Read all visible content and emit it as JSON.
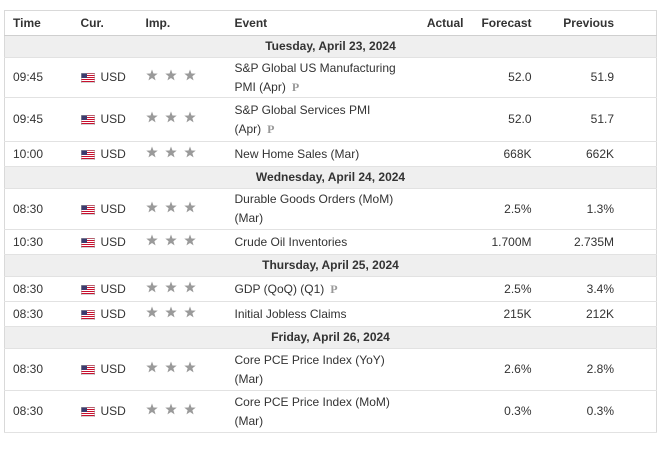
{
  "header": {
    "columns": [
      "Time",
      "Cur.",
      "Imp.",
      "Event",
      "Actual",
      "Forecast",
      "Previous"
    ]
  },
  "days": [
    {
      "date": "Tuesday, April 23, 2024",
      "events": [
        {
          "time": "09:45",
          "currency": "USD",
          "event": "S&P Global US Manufacturing PMI (Apr)",
          "mark": "P",
          "forecast": "52.0",
          "previous": "51.9"
        },
        {
          "time": "09:45",
          "currency": "USD",
          "event": "S&P Global Services PMI (Apr)",
          "mark": "P",
          "forecast": "52.0",
          "previous": "51.7"
        },
        {
          "time": "10:00",
          "currency": "USD",
          "event": "New Home Sales (Mar)",
          "forecast": "668K",
          "previous": "662K"
        }
      ]
    },
    {
      "date": "Wednesday, April 24, 2024",
      "events": [
        {
          "time": "08:30",
          "currency": "USD",
          "event": "Durable Goods Orders (MoM) (Mar)",
          "forecast": "2.5%",
          "previous": "1.3%"
        },
        {
          "time": "10:30",
          "currency": "USD",
          "event": "Crude Oil Inventories",
          "forecast": "1.700M",
          "previous": "2.735M"
        }
      ]
    },
    {
      "date": "Thursday, April 25, 2024",
      "events": [
        {
          "time": "08:30",
          "currency": "USD",
          "event": "GDP (QoQ) (Q1)",
          "mark": "P",
          "forecast": "2.5%",
          "previous": "3.4%"
        },
        {
          "time": "08:30",
          "currency": "USD",
          "event": "Initial Jobless Claims",
          "forecast": "215K",
          "previous": "212K"
        }
      ]
    },
    {
      "date": "Friday, April 26, 2024",
      "events": [
        {
          "time": "08:30",
          "currency": "USD",
          "event": "Core PCE Price Index (YoY) (Mar)",
          "forecast": "2.6%",
          "previous": "2.8%"
        },
        {
          "time": "08:30",
          "currency": "USD",
          "event": "Core PCE Price Index (MoM) (Mar)",
          "forecast": "0.3%",
          "previous": "0.3%"
        }
      ]
    }
  ]
}
